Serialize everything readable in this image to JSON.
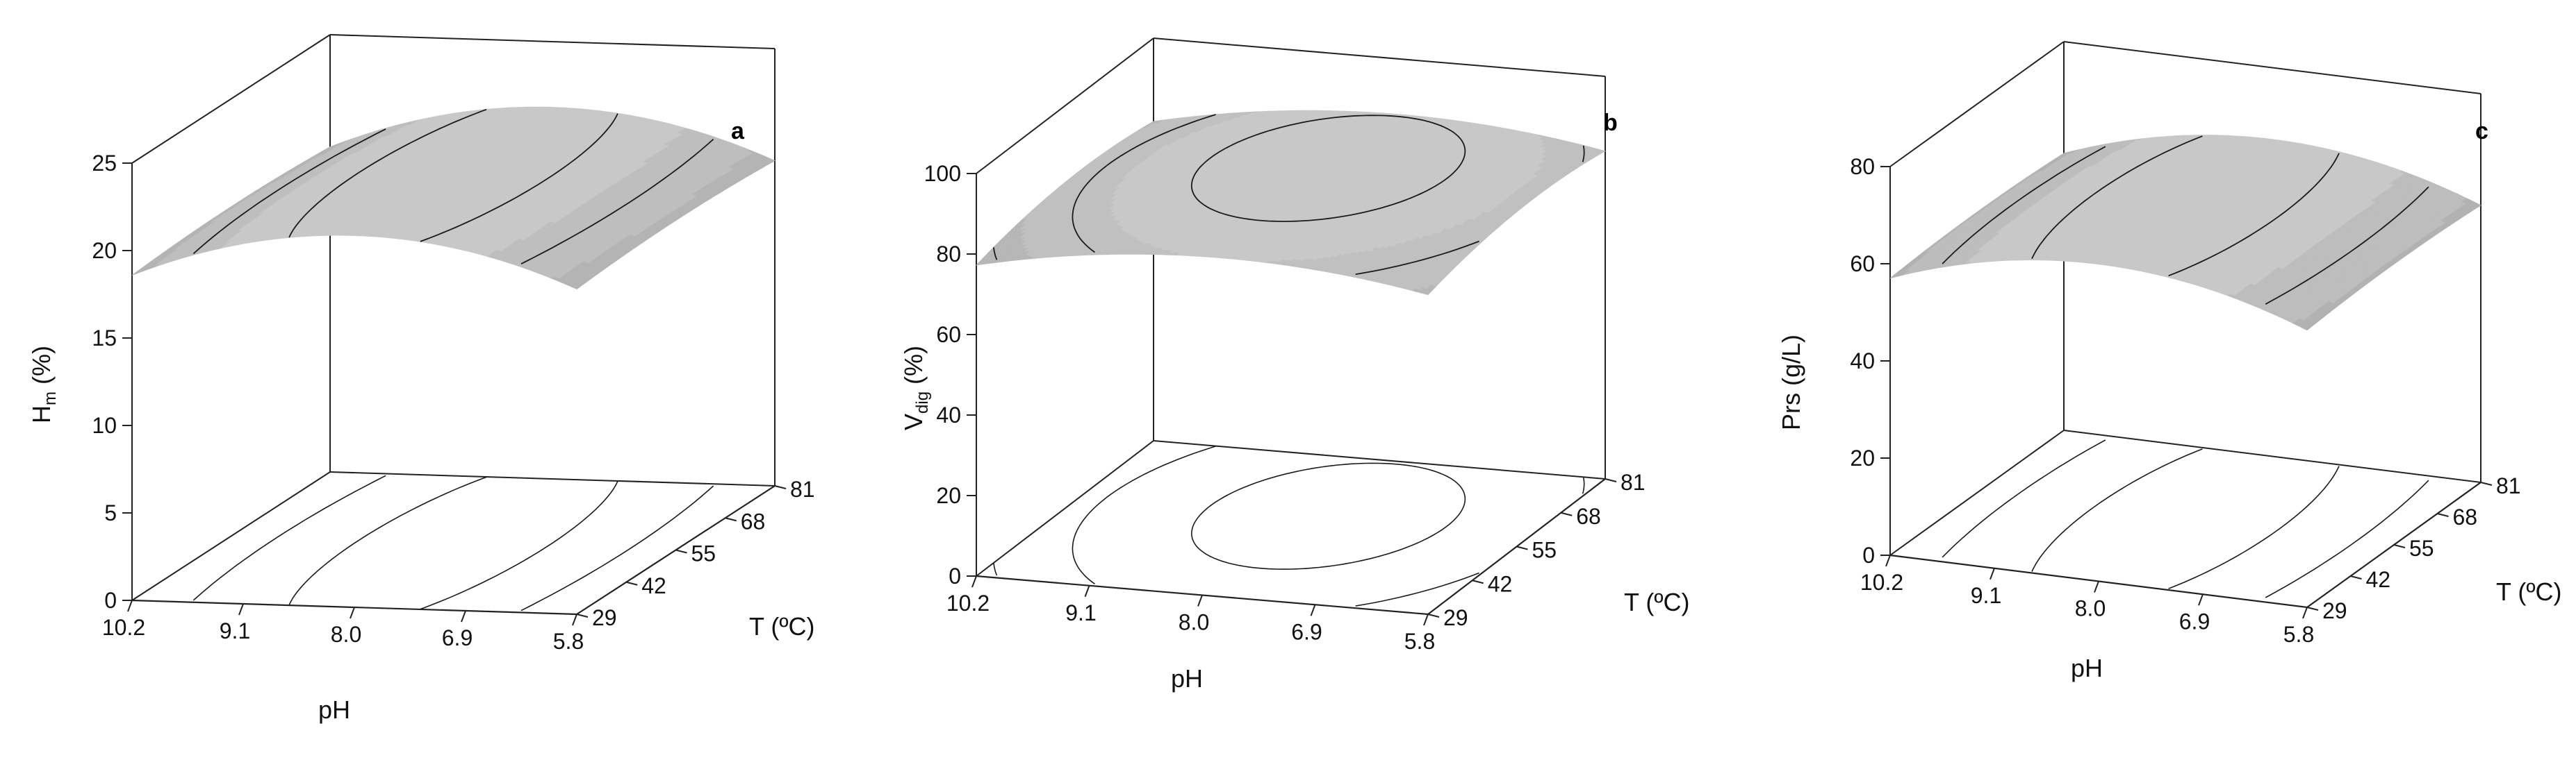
{
  "colors": {
    "surface_light": "#c8c8c8",
    "surface_dark": "#1a1a1a",
    "contour_line": "#1a1a1a",
    "axis": "#222222"
  },
  "chart_data": [
    {
      "type": "surface",
      "panel_label": "a",
      "zlabel": "H",
      "zlabel_sub": "m",
      "zlabel_suffix": " (%)",
      "xlabel": "pH",
      "ylabel": "T (ºC)",
      "x_ticks": [
        "10.2",
        "9.1",
        "8.0",
        "6.9",
        "5.8"
      ],
      "y_ticks": [
        "29",
        "42",
        "55",
        "68",
        "81"
      ],
      "z_ticks": [
        "0",
        "5",
        "10",
        "15",
        "20",
        "25"
      ],
      "zlim": [
        0,
        25
      ],
      "x_range": [
        5.8,
        10.2
      ],
      "y_range": [
        29,
        81
      ],
      "model": {
        "peak": 21.5,
        "x_opt": 8.0,
        "y_opt": 55,
        "kx": 0.55,
        "ky": 0.00037
      },
      "contour_step": 1.2
    },
    {
      "type": "surface",
      "panel_label": "b",
      "zlabel": "V",
      "zlabel_sub": "dig",
      "zlabel_suffix": " (%)",
      "xlabel": "pH",
      "ylabel": "T (ºC)",
      "x_ticks": [
        "10.2",
        "9.1",
        "8.0",
        "6.9",
        "5.8"
      ],
      "y_ticks": [
        "29",
        "42",
        "55",
        "68",
        "81"
      ],
      "z_ticks": [
        "0",
        "20",
        "40",
        "60",
        "80",
        "100"
      ],
      "zlim": [
        0,
        100
      ],
      "x_range": [
        5.8,
        10.2
      ],
      "y_range": [
        29,
        81
      ],
      "model": {
        "peak": 88,
        "x_opt": 7.8,
        "y_opt": 60,
        "kx": 1.2,
        "ky": 0.004
      },
      "contour_step": 4
    },
    {
      "type": "surface",
      "panel_label": "c",
      "zlabel": "Prs (g/L)",
      "zlabel_sub": "",
      "zlabel_suffix": "",
      "xlabel": "pH",
      "ylabel": "T (ºC)",
      "x_ticks": [
        "10.2",
        "9.1",
        "8.0",
        "6.9",
        "5.8"
      ],
      "y_ticks": [
        "29",
        "42",
        "55",
        "68",
        "81"
      ],
      "z_ticks": [
        "0",
        "20",
        "40",
        "60",
        "80"
      ],
      "zlim": [
        0,
        80
      ],
      "x_range": [
        5.8,
        10.2
      ],
      "y_range": [
        29,
        81
      ],
      "model": {
        "peak": 66,
        "x_opt": 8.0,
        "y_opt": 55,
        "kx": 1.7,
        "ky": 0.0011
      },
      "contour_step": 4
    }
  ]
}
